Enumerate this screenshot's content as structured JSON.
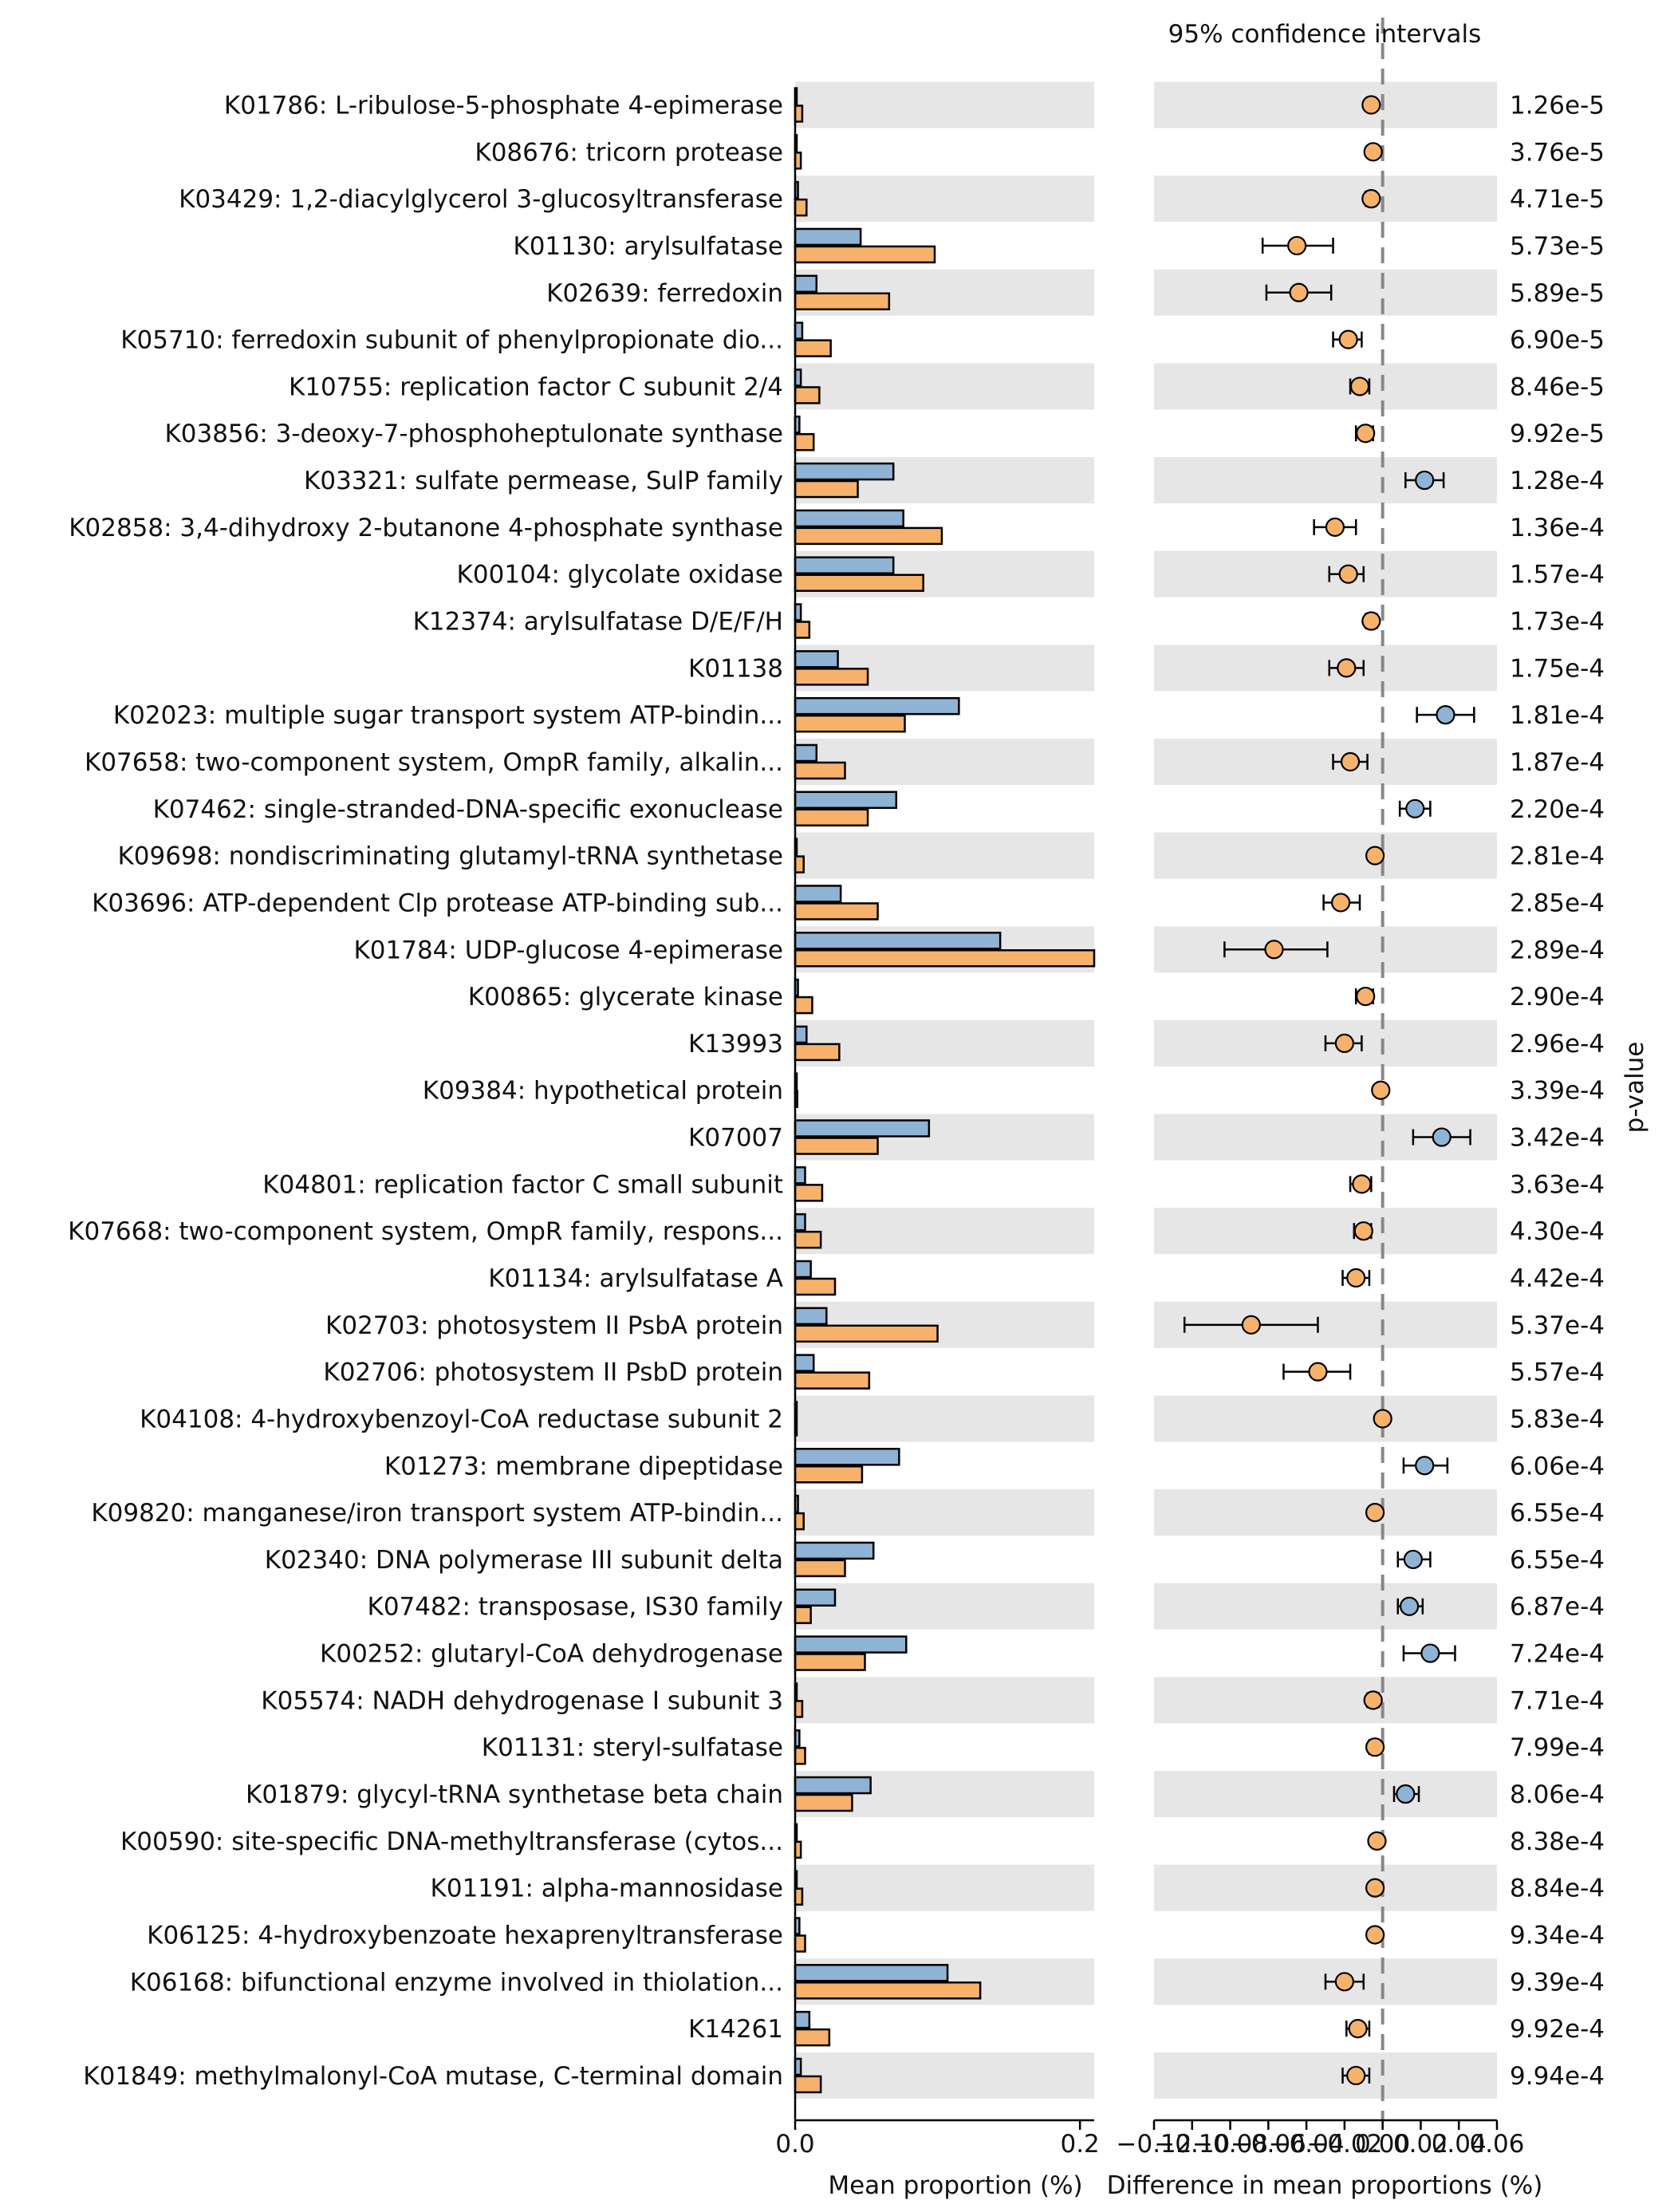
{
  "chart_data": {
    "type": "bar",
    "title": "95% confidence intervals",
    "xlabel_left": "Mean proportion (%)",
    "xlabel_right": "Difference in mean proportions (%)",
    "right_axis_label": "p-value",
    "colors": {
      "group1": "#8fb3d4",
      "group2": "#f6b26b",
      "stripe": "#e6e6e6",
      "zero_line": "#888888"
    },
    "left_xlim": [
      0,
      0.21
    ],
    "left_ticks": [
      "0.0",
      "0.2"
    ],
    "left_tick_values": [
      0,
      0.2
    ],
    "right_xlim": [
      -0.12,
      0.06
    ],
    "right_ticks": [
      "−0.12",
      "−0.10",
      "−0.08",
      "−0.06",
      "−0.04",
      "−0.02",
      "0.00",
      "0.02",
      "0.04",
      "0.06"
    ],
    "right_tick_values": [
      -0.12,
      -0.1,
      -0.08,
      -0.06,
      -0.04,
      -0.02,
      0.0,
      0.02,
      0.04,
      0.06
    ],
    "rows": [
      {
        "label": "K01786: L-ribulose-5-phosphate 4-epimerase",
        "g1": 0.0005,
        "g2": 0.005,
        "diff": -0.006,
        "lo": -0.008,
        "hi": -0.004,
        "p": "1.26e-5"
      },
      {
        "label": "K08676: tricorn protease",
        "g1": 0.0005,
        "g2": 0.004,
        "diff": -0.005,
        "lo": -0.007,
        "hi": -0.003,
        "p": "3.76e-5"
      },
      {
        "label": "K03429: 1,2-diacylglycerol 3-glucosyltransferase",
        "g1": 0.002,
        "g2": 0.008,
        "diff": -0.006,
        "lo": -0.009,
        "hi": -0.004,
        "p": "4.71e-5"
      },
      {
        "label": "K01130: arylsulfatase",
        "g1": 0.046,
        "g2": 0.098,
        "diff": -0.045,
        "lo": -0.063,
        "hi": -0.026,
        "p": "5.73e-5"
      },
      {
        "label": "K02639: ferredoxin",
        "g1": 0.015,
        "g2": 0.066,
        "diff": -0.044,
        "lo": -0.061,
        "hi": -0.027,
        "p": "5.89e-5"
      },
      {
        "label": "K05710: ferredoxin subunit of phenylpropionate dio...",
        "g1": 0.005,
        "g2": 0.025,
        "diff": -0.018,
        "lo": -0.026,
        "hi": -0.011,
        "p": "6.90e-5"
      },
      {
        "label": "K10755: replication factor C subunit 2/4",
        "g1": 0.004,
        "g2": 0.017,
        "diff": -0.012,
        "lo": -0.017,
        "hi": -0.007,
        "p": "8.46e-5"
      },
      {
        "label": "K03856: 3-deoxy-7-phosphoheptulonate synthase",
        "g1": 0.003,
        "g2": 0.013,
        "diff": -0.009,
        "lo": -0.014,
        "hi": -0.005,
        "p": "9.92e-5"
      },
      {
        "label": "K03321: sulfate permease, SulP family",
        "g1": 0.069,
        "g2": 0.044,
        "diff": 0.022,
        "lo": 0.012,
        "hi": 0.032,
        "p": "1.28e-4"
      },
      {
        "label": "K02858: 3,4-dihydroxy 2-butanone 4-phosphate synthase",
        "g1": 0.076,
        "g2": 0.103,
        "diff": -0.025,
        "lo": -0.036,
        "hi": -0.014,
        "p": "1.36e-4"
      },
      {
        "label": "K00104: glycolate oxidase",
        "g1": 0.069,
        "g2": 0.09,
        "diff": -0.018,
        "lo": -0.028,
        "hi": -0.01,
        "p": "1.57e-4"
      },
      {
        "label": "K12374: arylsulfatase D/E/F/H",
        "g1": 0.004,
        "g2": 0.01,
        "diff": -0.006,
        "lo": -0.009,
        "hi": -0.003,
        "p": "1.73e-4"
      },
      {
        "label": "K01138",
        "g1": 0.03,
        "g2": 0.051,
        "diff": -0.019,
        "lo": -0.028,
        "hi": -0.01,
        "p": "1.75e-4"
      },
      {
        "label": "K02023: multiple sugar transport system ATP-bindin...",
        "g1": 0.115,
        "g2": 0.077,
        "diff": 0.033,
        "lo": 0.018,
        "hi": 0.048,
        "p": "1.81e-4"
      },
      {
        "label": "K07658: two-component system, OmpR family, alkalin...",
        "g1": 0.015,
        "g2": 0.035,
        "diff": -0.017,
        "lo": -0.026,
        "hi": -0.008,
        "p": "1.87e-4"
      },
      {
        "label": "K07462: single-stranded-DNA-specific exonuclease",
        "g1": 0.071,
        "g2": 0.051,
        "diff": 0.017,
        "lo": 0.009,
        "hi": 0.025,
        "p": "2.20e-4"
      },
      {
        "label": "K09698: nondiscriminating glutamyl-tRNA synthetase",
        "g1": 0.001,
        "g2": 0.006,
        "diff": -0.004,
        "lo": -0.006,
        "hi": -0.002,
        "p": "2.81e-4"
      },
      {
        "label": "K03696: ATP-dependent Clp protease ATP-binding sub...",
        "g1": 0.032,
        "g2": 0.058,
        "diff": -0.022,
        "lo": -0.031,
        "hi": -0.012,
        "p": "2.85e-4"
      },
      {
        "label": "K01784: UDP-glucose 4-epimerase",
        "g1": 0.144,
        "g2": 0.21,
        "diff": -0.057,
        "lo": -0.083,
        "hi": -0.029,
        "p": "2.89e-4"
      },
      {
        "label": "K00865: glycerate kinase",
        "g1": 0.002,
        "g2": 0.012,
        "diff": -0.009,
        "lo": -0.014,
        "hi": -0.005,
        "p": "2.90e-4"
      },
      {
        "label": "K13993",
        "g1": 0.008,
        "g2": 0.031,
        "diff": -0.02,
        "lo": -0.03,
        "hi": -0.011,
        "p": "2.96e-4"
      },
      {
        "label": "K09384: hypothetical protein",
        "g1": 0.0005,
        "g2": 0.0015,
        "diff": -0.001,
        "lo": -0.002,
        "hi": 0.0,
        "p": "3.39e-4"
      },
      {
        "label": "K07007",
        "g1": 0.094,
        "g2": 0.058,
        "diff": 0.031,
        "lo": 0.016,
        "hi": 0.046,
        "p": "3.42e-4"
      },
      {
        "label": "K04801: replication factor C small subunit",
        "g1": 0.007,
        "g2": 0.019,
        "diff": -0.011,
        "lo": -0.017,
        "hi": -0.006,
        "p": "3.63e-4"
      },
      {
        "label": "K07668: two-component system, OmpR family, respons...",
        "g1": 0.007,
        "g2": 0.018,
        "diff": -0.01,
        "lo": -0.015,
        "hi": -0.006,
        "p": "4.30e-4"
      },
      {
        "label": "K01134: arylsulfatase A",
        "g1": 0.011,
        "g2": 0.028,
        "diff": -0.014,
        "lo": -0.021,
        "hi": -0.007,
        "p": "4.42e-4"
      },
      {
        "label": "K02703: photosystem II PsbA protein",
        "g1": 0.022,
        "g2": 0.1,
        "diff": -0.069,
        "lo": -0.104,
        "hi": -0.034,
        "p": "5.37e-4"
      },
      {
        "label": "K02706: photosystem II PsbD protein",
        "g1": 0.013,
        "g2": 0.052,
        "diff": -0.034,
        "lo": -0.052,
        "hi": -0.017,
        "p": "5.57e-4"
      },
      {
        "label": "K04108: 4-hydroxybenzoyl-CoA reductase subunit 2",
        "g1": 0.0005,
        "g2": 0.001,
        "diff": 0.0,
        "lo": -0.001,
        "hi": 0.001,
        "p": "5.83e-4"
      },
      {
        "label": "K01273: membrane dipeptidase",
        "g1": 0.073,
        "g2": 0.047,
        "diff": 0.022,
        "lo": 0.011,
        "hi": 0.034,
        "p": "6.06e-4"
      },
      {
        "label": "K09820: manganese/iron transport system ATP-bindin...",
        "g1": 0.002,
        "g2": 0.006,
        "diff": -0.004,
        "lo": -0.006,
        "hi": -0.002,
        "p": "6.55e-4"
      },
      {
        "label": "K02340: DNA polymerase III subunit delta",
        "g1": 0.055,
        "g2": 0.035,
        "diff": 0.016,
        "lo": 0.008,
        "hi": 0.025,
        "p": "6.55e-4"
      },
      {
        "label": "K07482: transposase, IS30 family",
        "g1": 0.028,
        "g2": 0.011,
        "diff": 0.014,
        "lo": 0.008,
        "hi": 0.021,
        "p": "6.87e-4"
      },
      {
        "label": "K00252: glutaryl-CoA dehydrogenase",
        "g1": 0.078,
        "g2": 0.049,
        "diff": 0.025,
        "lo": 0.011,
        "hi": 0.038,
        "p": "7.24e-4"
      },
      {
        "label": "K05574: NADH dehydrogenase I subunit 3",
        "g1": 0.001,
        "g2": 0.005,
        "diff": -0.005,
        "lo": -0.008,
        "hi": -0.002,
        "p": "7.71e-4"
      },
      {
        "label": "K01131: steryl-sulfatase",
        "g1": 0.003,
        "g2": 0.007,
        "diff": -0.004,
        "lo": -0.007,
        "hi": -0.002,
        "p": "7.99e-4"
      },
      {
        "label": "K01879: glycyl-tRNA synthetase beta chain",
        "g1": 0.053,
        "g2": 0.04,
        "diff": 0.012,
        "lo": 0.006,
        "hi": 0.019,
        "p": "8.06e-4"
      },
      {
        "label": "K00590: site-specific DNA-methyltransferase (cytos...",
        "g1": 0.001,
        "g2": 0.004,
        "diff": -0.003,
        "lo": -0.005,
        "hi": -0.001,
        "p": "8.38e-4"
      },
      {
        "label": "K01191: alpha-mannosidase",
        "g1": 0.001,
        "g2": 0.005,
        "diff": -0.004,
        "lo": -0.006,
        "hi": -0.002,
        "p": "8.84e-4"
      },
      {
        "label": "K06125: 4-hydroxybenzoate hexaprenyltransferase",
        "g1": 0.003,
        "g2": 0.007,
        "diff": -0.004,
        "lo": -0.006,
        "hi": -0.002,
        "p": "9.34e-4"
      },
      {
        "label": "K06168: bifunctional enzyme involved in thiolation...",
        "g1": 0.107,
        "g2": 0.13,
        "diff": -0.02,
        "lo": -0.03,
        "hi": -0.01,
        "p": "9.39e-4"
      },
      {
        "label": "K14261",
        "g1": 0.01,
        "g2": 0.024,
        "diff": -0.013,
        "lo": -0.019,
        "hi": -0.007,
        "p": "9.92e-4"
      },
      {
        "label": "K01849: methylmalonyl-CoA mutase, C-terminal domain",
        "g1": 0.004,
        "g2": 0.018,
        "diff": -0.014,
        "lo": -0.021,
        "hi": -0.007,
        "p": "9.94e-4"
      }
    ]
  }
}
